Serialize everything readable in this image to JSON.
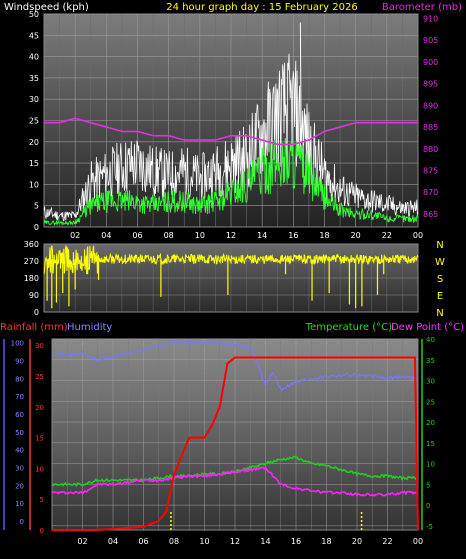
{
  "header": {
    "left": "Windspeed (kph)",
    "center": "24 hour graph day : 15 February 2026",
    "right": "Barometer (mb)"
  },
  "colors": {
    "wind_gust": "#ffffff",
    "wind_avg": "#33ff33",
    "barometer": "#dd33dd",
    "direction": "#ffff00",
    "rain": "#ff0000",
    "humidity": "#7777ff",
    "temperature": "#22cc22",
    "dewpoint": "#ff22ff",
    "rain_marker": "#ffff00"
  },
  "bottom_header": {
    "rain": "Rainfall (mm)",
    "humidity": "Humidity",
    "temperature": "Temperature (°C)",
    "dewpoint": "Dew Point (°C)"
  },
  "x_ticks": [
    "02",
    "04",
    "06",
    "08",
    "10",
    "12",
    "14",
    "16",
    "18",
    "20",
    "22",
    "00"
  ],
  "compass": [
    "N",
    "W",
    "S",
    "E",
    "N"
  ],
  "chart_data": [
    {
      "type": "line",
      "name": "wind-barometer",
      "y_left_ticks": [
        "0",
        "5",
        "10",
        "15",
        "20",
        "25",
        "30",
        "35",
        "40",
        "45",
        "50"
      ],
      "y_right_ticks": [
        "865",
        "870",
        "875",
        "880",
        "885",
        "890",
        "895",
        "900",
        "905",
        "910"
      ],
      "ylim_left": [
        0,
        50
      ],
      "ylim_right": [
        862,
        911
      ],
      "x_hours": [
        0,
        1,
        2,
        3,
        4,
        5,
        6,
        7,
        8,
        9,
        10,
        11,
        12,
        13,
        14,
        15,
        16,
        17,
        18,
        19,
        20,
        21,
        22,
        23,
        24
      ],
      "series": [
        {
          "values": [
            4,
            3,
            3,
            12,
            14,
            16,
            17,
            15,
            14,
            15,
            13,
            15,
            17,
            19,
            25,
            30,
            32,
            22,
            14,
            10,
            8,
            7,
            6,
            5,
            5
          ]
        },
        {
          "values": [
            1,
            1,
            1,
            5,
            6,
            6,
            6,
            5,
            6,
            6,
            5,
            6,
            8,
            10,
            13,
            15,
            16,
            12,
            7,
            4,
            3,
            3,
            2,
            2,
            2
          ]
        },
        {
          "values": [
            886,
            886,
            887,
            886,
            885,
            884,
            884,
            883,
            883,
            882,
            882,
            882,
            883,
            883,
            882,
            881,
            881,
            882,
            884,
            885,
            886,
            886,
            886,
            886,
            886
          ]
        }
      ]
    },
    {
      "type": "scatter",
      "name": "wind-direction",
      "y_ticks": [
        "0",
        "90",
        "180",
        "270",
        "360"
      ],
      "ylim": [
        0,
        360
      ],
      "baseline": 280,
      "spikes": [
        [
          0.2,
          60
        ],
        [
          0.5,
          20
        ],
        [
          0.8,
          50
        ],
        [
          1.2,
          100
        ],
        [
          1.6,
          30
        ],
        [
          2.0,
          120
        ],
        [
          2.8,
          200
        ],
        [
          3.5,
          170
        ],
        [
          7.5,
          80
        ],
        [
          11.8,
          90
        ],
        [
          15.5,
          200
        ],
        [
          17.2,
          60
        ],
        [
          18.3,
          100
        ],
        [
          19.6,
          40
        ],
        [
          20.0,
          20
        ],
        [
          20.4,
          30
        ],
        [
          21.4,
          90
        ],
        [
          21.8,
          200
        ]
      ]
    },
    {
      "type": "line",
      "name": "rain-humidity-temperature",
      "y_rain_ticks": [
        "0",
        "5",
        "10",
        "15",
        "20",
        "25",
        "30"
      ],
      "y_hum_ticks": [
        "0",
        "10",
        "20",
        "30",
        "40",
        "50",
        "60",
        "70",
        "80",
        "90",
        "100"
      ],
      "y_temp_ticks": [
        "-5",
        "0",
        "5",
        "10",
        "15",
        "20",
        "25",
        "30",
        "35",
        "40"
      ],
      "ylim_rain": [
        0,
        31
      ],
      "ylim_hum": [
        -5,
        102
      ],
      "ylim_temp": [
        -6,
        40
      ],
      "rain": {
        "x": [
          0,
          3,
          6,
          7,
          7.5,
          8,
          8.5,
          9,
          10,
          10.5,
          11,
          11.5,
          12,
          23,
          23.8,
          24
        ],
        "values": [
          0,
          0,
          0.5,
          1.5,
          3,
          9,
          12,
          15,
          15,
          17,
          20,
          27,
          28,
          28,
          28,
          0
        ]
      },
      "humidity": {
        "x": [
          0,
          1,
          2,
          3,
          4,
          5,
          6,
          7,
          8,
          9,
          10,
          11,
          12,
          13,
          13.5,
          14,
          14.5,
          15,
          16,
          17,
          18,
          19,
          20,
          21,
          22,
          23,
          24
        ],
        "values": [
          95,
          93,
          94,
          90,
          92,
          94,
          96,
          98,
          100,
          100,
          100,
          100,
          99,
          97,
          88,
          76,
          83,
          74,
          78,
          80,
          81,
          82,
          82,
          81,
          80,
          81,
          80
        ]
      },
      "temperature": {
        "x": [
          0,
          1,
          2,
          3,
          4,
          5,
          6,
          7,
          8,
          9,
          10,
          11,
          12,
          13,
          14,
          15,
          16,
          17,
          18,
          19,
          20,
          21,
          22,
          23,
          24
        ],
        "values": [
          5,
          5,
          5,
          6,
          6,
          6,
          6,
          6.5,
          7,
          7,
          7.5,
          7.5,
          8,
          9,
          10,
          11,
          11.5,
          10,
          9.5,
          8.5,
          7.5,
          7,
          7,
          6.5,
          6.5
        ]
      },
      "dewpoint": {
        "x": [
          0,
          1,
          2,
          3,
          4,
          5,
          6,
          7,
          8,
          9,
          10,
          11,
          12,
          13,
          14,
          15,
          16,
          17,
          18,
          19,
          20,
          21,
          22,
          23,
          24
        ],
        "values": [
          3,
          3,
          3,
          5,
          5,
          5.5,
          6,
          6,
          6.5,
          7,
          7,
          7.5,
          8,
          8.5,
          9,
          5,
          4,
          3.5,
          3,
          3,
          2.5,
          2.5,
          2.5,
          3,
          3
        ]
      },
      "rain_markers_x": [
        7.8,
        20.3
      ]
    }
  ]
}
